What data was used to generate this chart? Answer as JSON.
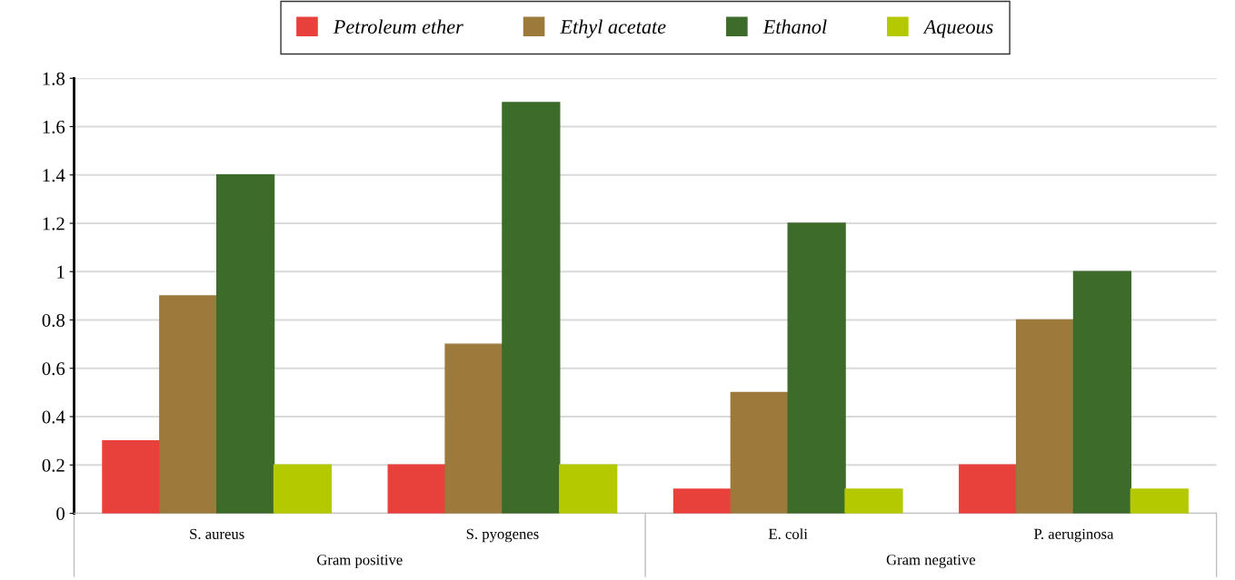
{
  "chart_data": {
    "type": "bar",
    "categories": [
      "S. aureus",
      "S. pyogenes",
      "E. coli",
      "P. aeruginosa"
    ],
    "series": [
      {
        "name": "Petroleum ether",
        "color": "#e8413c",
        "values": [
          0.3,
          0.2,
          0.1,
          0.2
        ]
      },
      {
        "name": "Ethyl acetate",
        "color": "#9c7a3c",
        "values": [
          0.9,
          0.7,
          0.5,
          0.8
        ]
      },
      {
        "name": "Ethanol",
        "color": "#3d6b2a",
        "values": [
          1.4,
          1.7,
          1.2,
          1.0
        ]
      },
      {
        "name": "Aqueous",
        "color": "#b5c900",
        "values": [
          0.2,
          0.2,
          0.1,
          0.1
        ]
      }
    ],
    "annotations": [
      "Gram positive",
      "Gram negative"
    ],
    "ylim": [
      0,
      1.8
    ],
    "yticks": [
      0,
      0.2,
      0.4,
      0.6,
      0.8,
      1,
      1.2,
      1.4,
      1.6,
      1.8
    ],
    "grid": "y",
    "legend": "top"
  }
}
